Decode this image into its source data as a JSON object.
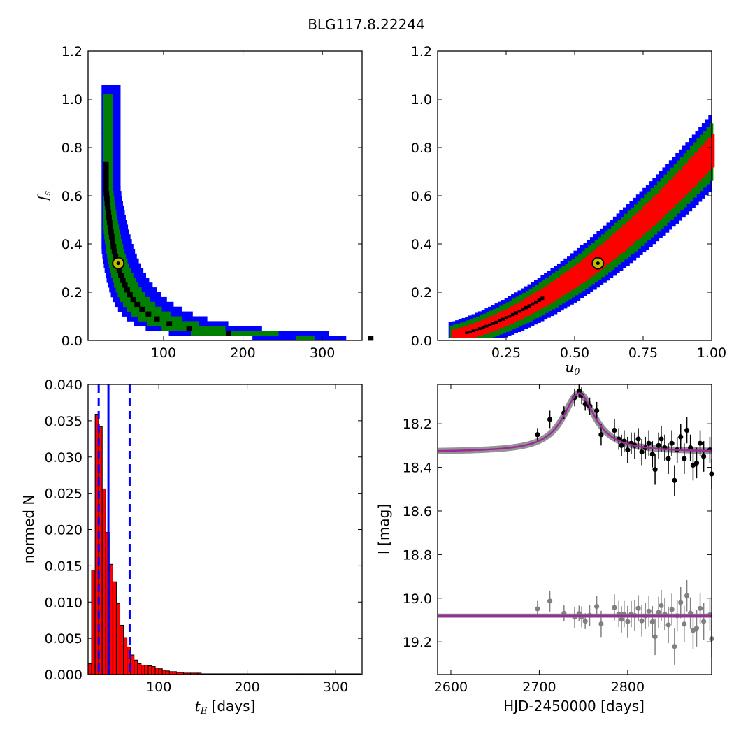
{
  "figure": {
    "title": "BLG117.8.22244"
  },
  "chart_data": [
    {
      "id": "fs_vs_tE",
      "type": "heatmap",
      "xlabel": "",
      "ylabel": "f_s",
      "xlim": [
        5,
        350
      ],
      "ylim": [
        0,
        1.2
      ],
      "xticks": [
        100,
        200,
        300
      ],
      "yticks": [
        0.0,
        0.2,
        0.4,
        0.6,
        0.8,
        1.0,
        1.2
      ],
      "tick_format": {
        "x": 0,
        "y": 1
      },
      "levels": [
        "blue",
        "green",
        "red",
        "black"
      ],
      "best_fit": {
        "x": 43,
        "y": 0.32
      },
      "colors": {
        "blue": "#0000ff",
        "green": "#008000",
        "red": "#ff0000",
        "black": "#000000",
        "best_fit_fill": "#bfbf00"
      }
    },
    {
      "id": "fs_vs_u0",
      "type": "heatmap",
      "xlabel": "u_0",
      "ylabel": "",
      "xlim": [
        0,
        1.0
      ],
      "ylim": [
        0,
        1.2
      ],
      "xticks": [
        0.25,
        0.5,
        0.75,
        1.0
      ],
      "yticks": [
        0.0,
        0.2,
        0.4,
        0.6,
        0.8,
        1.0,
        1.2
      ],
      "tick_format": {
        "x": 2,
        "y": 1
      },
      "levels": [
        "blue",
        "green",
        "red",
        "black"
      ],
      "best_fit": {
        "x": 0.585,
        "y": 0.32
      },
      "colors": {
        "blue": "#0000ff",
        "green": "#008000",
        "red": "#ff0000",
        "black": "#000000",
        "best_fit_fill": "#bfbf00"
      }
    },
    {
      "id": "tE_histogram",
      "type": "bar",
      "xlabel_prefix": "t_E",
      "xlabel_suffix": " [days]",
      "ylabel": "normed N",
      "xlim": [
        20,
        330
      ],
      "ylim": [
        0,
        0.04
      ],
      "xticks": [
        100,
        200,
        300
      ],
      "yticks": [
        0.0,
        0.005,
        0.01,
        0.015,
        0.02,
        0.025,
        0.03,
        0.035,
        0.04
      ],
      "tick_format": {
        "x": 0,
        "y": 3
      },
      "bin_start": 20,
      "bin_width": 4,
      "values": [
        0.0015,
        0.0144,
        0.0359,
        0.0342,
        0.0256,
        0.0196,
        0.0152,
        0.0128,
        0.0098,
        0.0068,
        0.0051,
        0.0038,
        0.0027,
        0.002,
        0.0015,
        0.0013,
        0.0013,
        0.0012,
        0.0011,
        0.0009,
        0.0008,
        0.0006,
        0.0005,
        0.0004,
        0.0004,
        0.0003,
        0.0003,
        0.0002,
        0.0002,
        0.0002,
        0.0002,
        0.0002,
        0.0001,
        0.0001,
        0.0001,
        0.0001,
        0.0001,
        0.0001,
        0.0001,
        0.0001,
        0.0001,
        0.0001,
        0.0001,
        0.0001,
        0.0001,
        0.0001,
        0.0001,
        0.0001,
        0.0001,
        0.0001,
        0.0001,
        0.0001,
        0.0001,
        0.0001,
        0.0001,
        0.0001,
        0.0001,
        0.0001,
        0.0001,
        0.0001,
        0.0001,
        0.0001,
        0.0001,
        0.0001,
        0.0001,
        0.0001,
        0.0001,
        0.0001,
        0.0001,
        0.0001,
        0.0001,
        0.0001,
        0.0001,
        0.0001,
        0.0001,
        0.0001,
        0.0001
      ],
      "vlines": {
        "median": 43,
        "lower": 32,
        "upper": 67
      },
      "colors": {
        "bar": "#ff0000",
        "edge": "#000000",
        "vline": "#0000ff"
      }
    },
    {
      "id": "light_curve",
      "type": "scatter",
      "xlabel": "HJD-2450000 [days]",
      "ylabel": "I [mag]",
      "xlim": [
        2585,
        2895
      ],
      "ylim": [
        19.35,
        18.02
      ],
      "xticks": [
        2600,
        2700,
        2800
      ],
      "yticks": [
        18.2,
        18.4,
        18.6,
        18.8,
        19.0,
        19.2
      ],
      "tick_format": {
        "x": 0,
        "y": 1
      },
      "model": {
        "baseline": 18.33,
        "t0": 2745,
        "peak": 18.06,
        "width": 22,
        "residual_baseline": 19.08
      },
      "data_points": [
        {
          "x": 2698,
          "y": 18.25,
          "err": 0.03
        },
        {
          "x": 2712,
          "y": 18.18,
          "err": 0.04
        },
        {
          "x": 2728,
          "y": 18.15,
          "err": 0.03
        },
        {
          "x": 2740,
          "y": 18.08,
          "err": 0.04
        },
        {
          "x": 2745,
          "y": 18.05,
          "err": 0.03
        },
        {
          "x": 2748,
          "y": 18.07,
          "err": 0.04
        },
        {
          "x": 2752,
          "y": 18.11,
          "err": 0.03
        },
        {
          "x": 2757,
          "y": 18.12,
          "err": 0.04
        },
        {
          "x": 2765,
          "y": 18.14,
          "err": 0.04
        },
        {
          "x": 2770,
          "y": 18.25,
          "err": 0.05
        },
        {
          "x": 2785,
          "y": 18.23,
          "err": 0.05
        },
        {
          "x": 2790,
          "y": 18.27,
          "err": 0.05
        },
        {
          "x": 2793,
          "y": 18.3,
          "err": 0.05
        },
        {
          "x": 2796,
          "y": 18.28,
          "err": 0.05
        },
        {
          "x": 2800,
          "y": 18.32,
          "err": 0.06
        },
        {
          "x": 2804,
          "y": 18.29,
          "err": 0.05
        },
        {
          "x": 2808,
          "y": 18.3,
          "err": 0.06
        },
        {
          "x": 2812,
          "y": 18.27,
          "err": 0.05
        },
        {
          "x": 2816,
          "y": 18.33,
          "err": 0.06
        },
        {
          "x": 2820,
          "y": 18.31,
          "err": 0.05
        },
        {
          "x": 2824,
          "y": 18.29,
          "err": 0.06
        },
        {
          "x": 2828,
          "y": 18.34,
          "err": 0.06
        },
        {
          "x": 2831,
          "y": 18.41,
          "err": 0.07
        },
        {
          "x": 2835,
          "y": 18.3,
          "err": 0.06
        },
        {
          "x": 2838,
          "y": 18.27,
          "err": 0.06
        },
        {
          "x": 2842,
          "y": 18.31,
          "err": 0.06
        },
        {
          "x": 2846,
          "y": 18.36,
          "err": 0.07
        },
        {
          "x": 2850,
          "y": 18.29,
          "err": 0.06
        },
        {
          "x": 2853,
          "y": 18.46,
          "err": 0.07
        },
        {
          "x": 2856,
          "y": 18.32,
          "err": 0.06
        },
        {
          "x": 2860,
          "y": 18.26,
          "err": 0.06
        },
        {
          "x": 2864,
          "y": 18.36,
          "err": 0.07
        },
        {
          "x": 2867,
          "y": 18.23,
          "err": 0.06
        },
        {
          "x": 2871,
          "y": 18.31,
          "err": 0.06
        },
        {
          "x": 2874,
          "y": 18.39,
          "err": 0.07
        },
        {
          "x": 2878,
          "y": 18.38,
          "err": 0.07
        },
        {
          "x": 2882,
          "y": 18.29,
          "err": 0.06
        },
        {
          "x": 2886,
          "y": 18.35,
          "err": 0.07
        },
        {
          "x": 2893,
          "y": 18.32,
          "err": 0.06
        },
        {
          "x": 2895,
          "y": 18.43,
          "err": 0.07
        }
      ],
      "colors": {
        "data": "#000000",
        "residual": "#808080",
        "model": "#9b2b9b",
        "band": "#808080"
      }
    }
  ]
}
